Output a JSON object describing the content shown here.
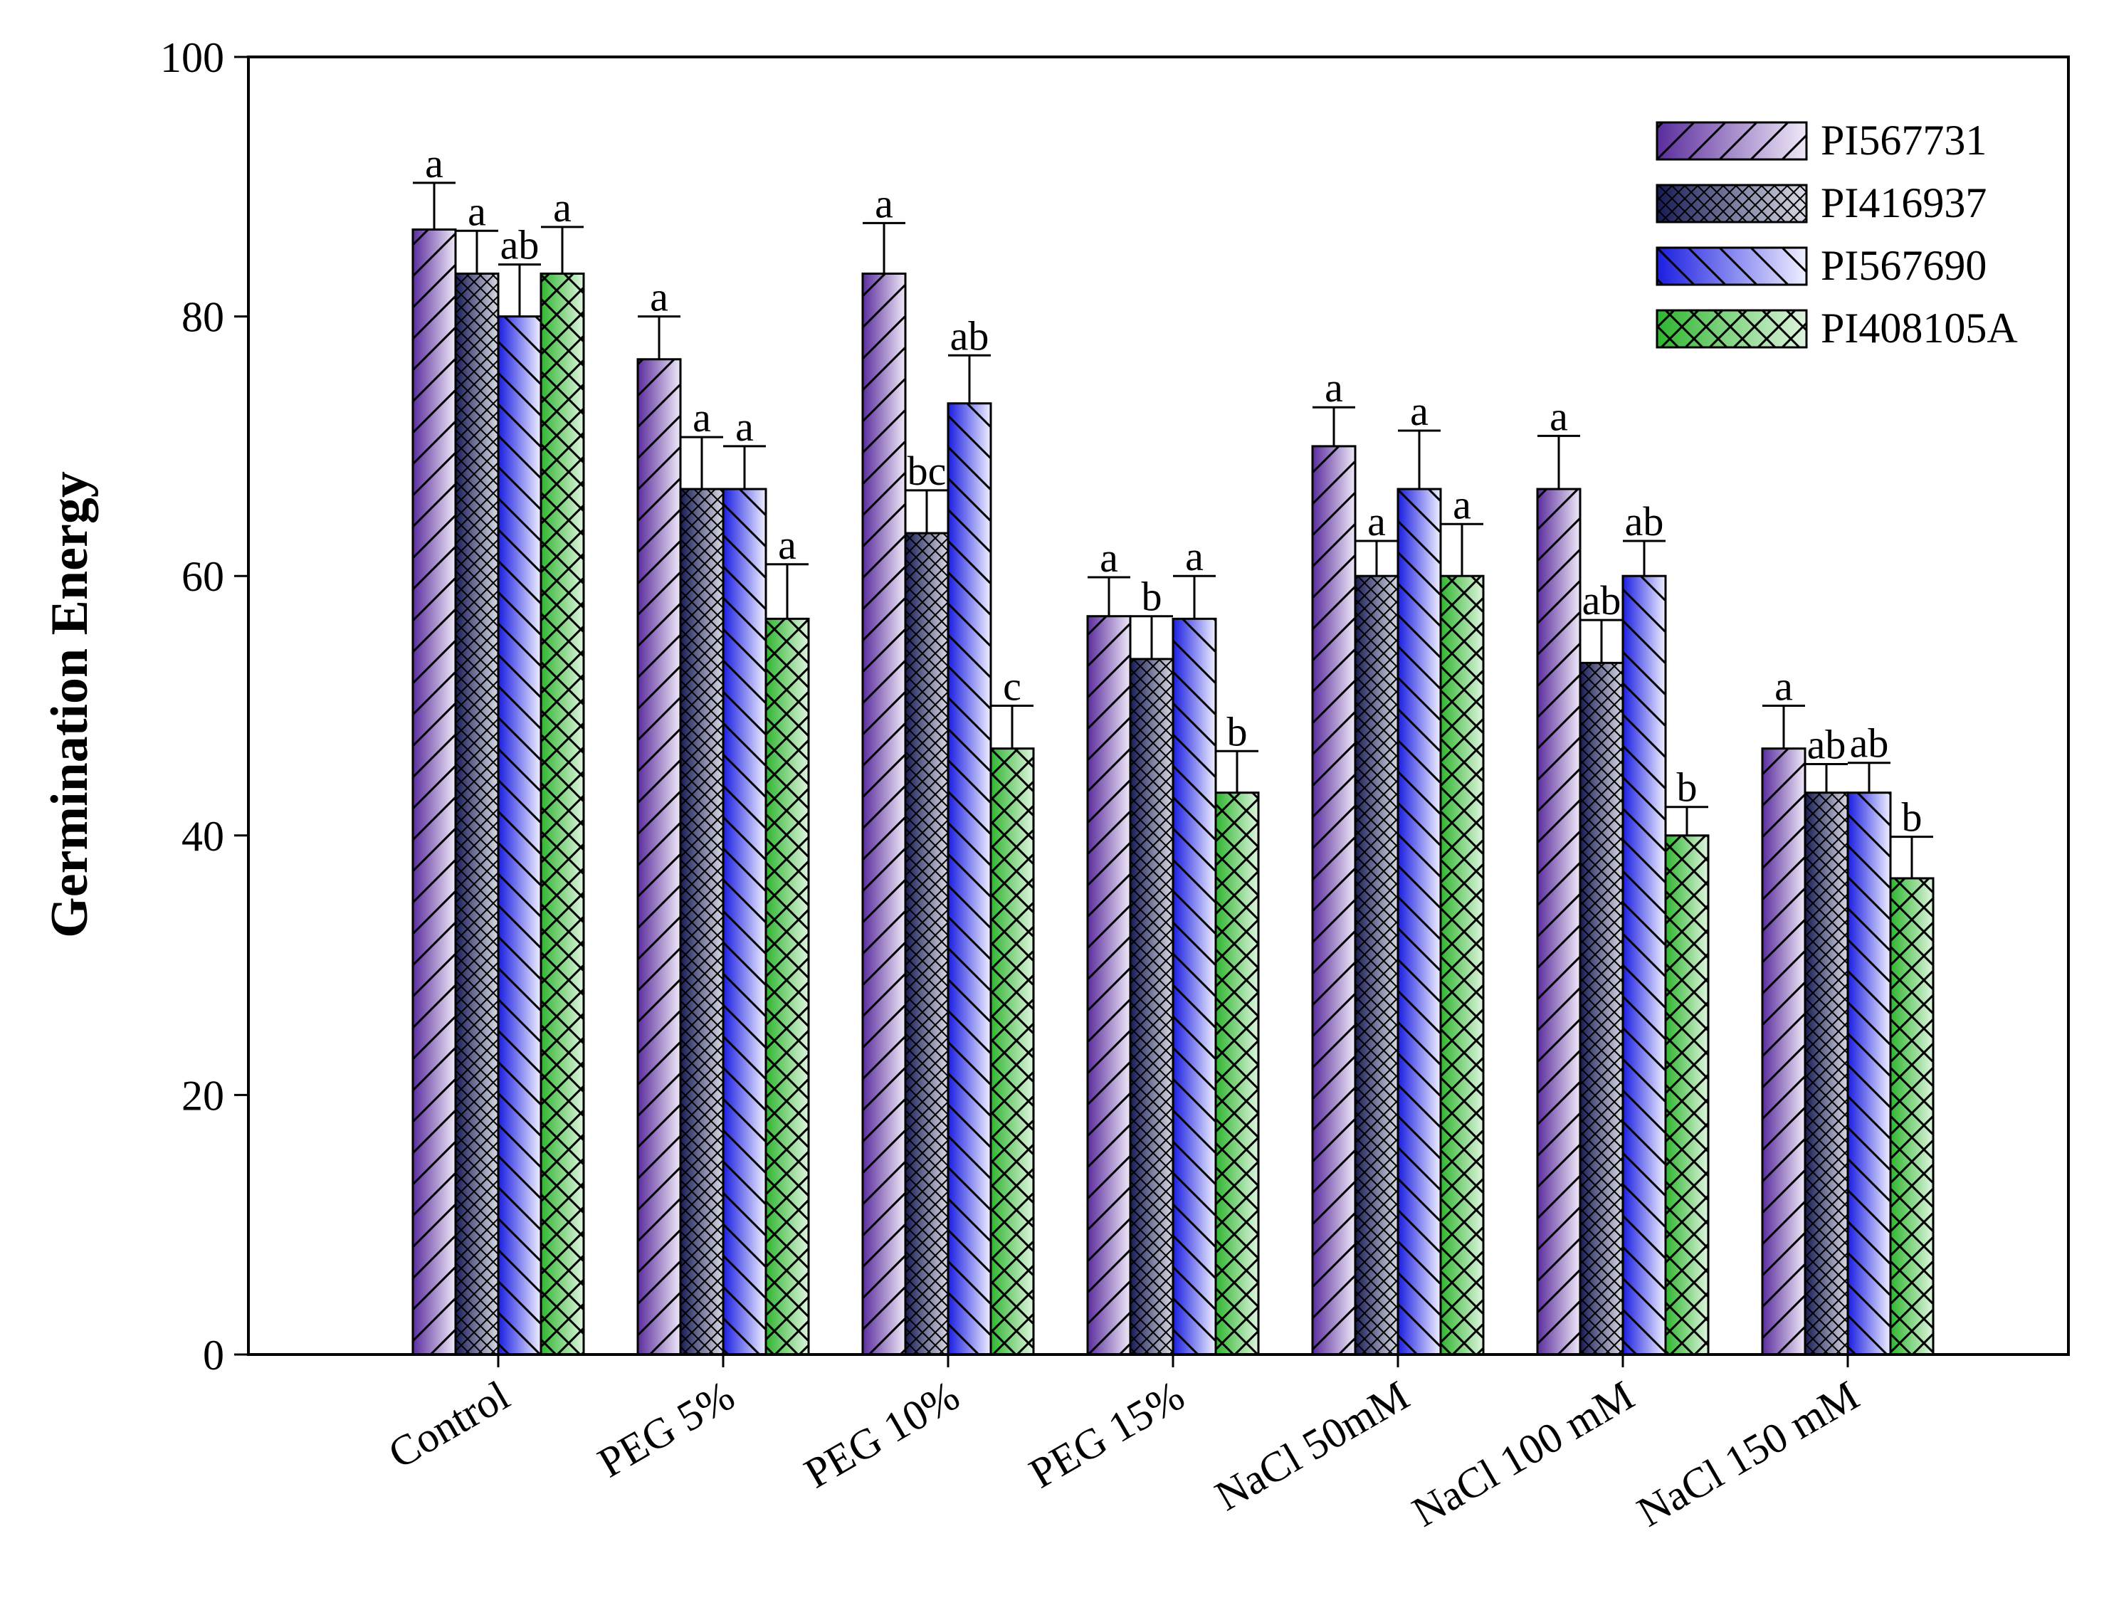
{
  "chart_data": {
    "type": "bar",
    "title": "",
    "xlabel": "",
    "ylabel": "Germination Energy",
    "ylim": [
      0,
      100
    ],
    "yticks": [
      0,
      20,
      40,
      60,
      80,
      100
    ],
    "grid": false,
    "legend_position": "top-right",
    "categories": [
      "Control",
      "PEG 5%",
      "PEG 10%",
      "PEG 15%",
      "NaCl  50mM",
      "NaCl  100  mM",
      "NaCl  150  mM"
    ],
    "series": [
      {
        "name": "PI567731",
        "pattern": "forward-diagonal",
        "color_dark": "#5a2d9c",
        "color_light": "#efe9f8",
        "values": [
          86.7,
          76.7,
          83.3,
          56.9,
          70.0,
          66.7,
          46.7
        ],
        "errors": [
          3.6,
          3.3,
          3.9,
          3.0,
          3.0,
          4.1,
          3.3
        ],
        "labels": [
          "a",
          "a",
          "a",
          "a",
          "a",
          "a",
          "a"
        ]
      },
      {
        "name": "PI416937",
        "pattern": "crosshatch",
        "color_dark": "#161a55",
        "color_light": "#d9dbe4",
        "values": [
          83.3,
          66.7,
          63.3,
          53.6,
          60.0,
          53.3,
          43.3
        ],
        "errors": [
          3.3,
          4.0,
          3.3,
          3.3,
          2.7,
          3.3,
          2.2
        ],
        "labels": [
          "a",
          "a",
          "bc",
          "b",
          "a",
          "ab",
          "ab"
        ]
      },
      {
        "name": "PI567690",
        "pattern": "backward-diagonal",
        "color_dark": "#1a1ee0",
        "color_light": "#f0f0ff",
        "values": [
          80.0,
          66.7,
          73.3,
          56.7,
          66.7,
          60.0,
          43.3
        ],
        "errors": [
          4.0,
          3.3,
          3.7,
          3.3,
          4.5,
          2.7,
          2.3
        ],
        "labels": [
          "ab",
          "a",
          "ab",
          "a",
          "a",
          "ab",
          "ab"
        ]
      },
      {
        "name": "PI408105A",
        "pattern": "diagonal-cross",
        "color_dark": "#2fb52f",
        "color_light": "#dff5df",
        "values": [
          83.3,
          56.7,
          46.7,
          43.3,
          60.0,
          40.0,
          36.7
        ],
        "errors": [
          3.6,
          4.2,
          3.3,
          3.2,
          4.0,
          2.2,
          3.2
        ],
        "labels": [
          "a",
          "a",
          "c",
          "b",
          "a",
          "b",
          "b"
        ]
      }
    ]
  }
}
